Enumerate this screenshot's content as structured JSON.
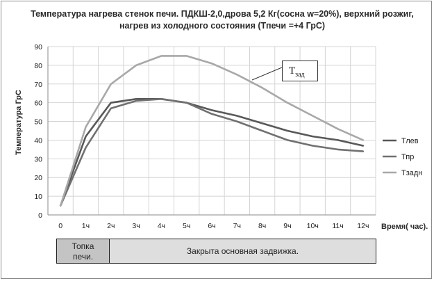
{
  "chart_data": {
    "type": "line",
    "title": "Температура нагрева стенок печи. ПДКШ-2,0,дрова 5,2 Кг(сосна w=20%), верхний розжиг, нагрев из холодного состояния (Тпечи =+4 ГрС)",
    "ylabel": "Температура ГрС",
    "xlabel": "Время( час).",
    "categories": [
      "0",
      "1ч",
      "2ч",
      "3ч",
      "4ч",
      "5ч",
      "6ч",
      "7ч",
      "8ч",
      "9ч",
      "10ч",
      "11ч",
      "12ч"
    ],
    "ylim": [
      0,
      90
    ],
    "yticks": [
      0,
      10,
      20,
      30,
      40,
      50,
      60,
      70,
      80,
      90
    ],
    "grid": true,
    "legend_position": "right",
    "series": [
      {
        "name": "Тлев",
        "color": "#585858",
        "values": [
          5,
          42,
          60,
          62,
          62,
          60,
          56,
          53,
          49,
          45,
          42,
          40,
          37
        ]
      },
      {
        "name": "Тпр",
        "color": "#707070",
        "values": [
          5,
          36,
          57,
          61,
          62,
          60,
          54,
          50,
          45,
          40,
          37,
          35,
          34
        ]
      },
      {
        "name": "Тзадн",
        "color": "#a8a8a8",
        "values": [
          5,
          47,
          70,
          80,
          85,
          85,
          81,
          75,
          68,
          60,
          53,
          46,
          40
        ]
      }
    ],
    "annotation": {
      "label": "Т",
      "sub": "зад"
    }
  },
  "timeline": {
    "segment1": [
      "Топка",
      "печи."
    ],
    "segment2": "Закрыта основная задвижка."
  }
}
